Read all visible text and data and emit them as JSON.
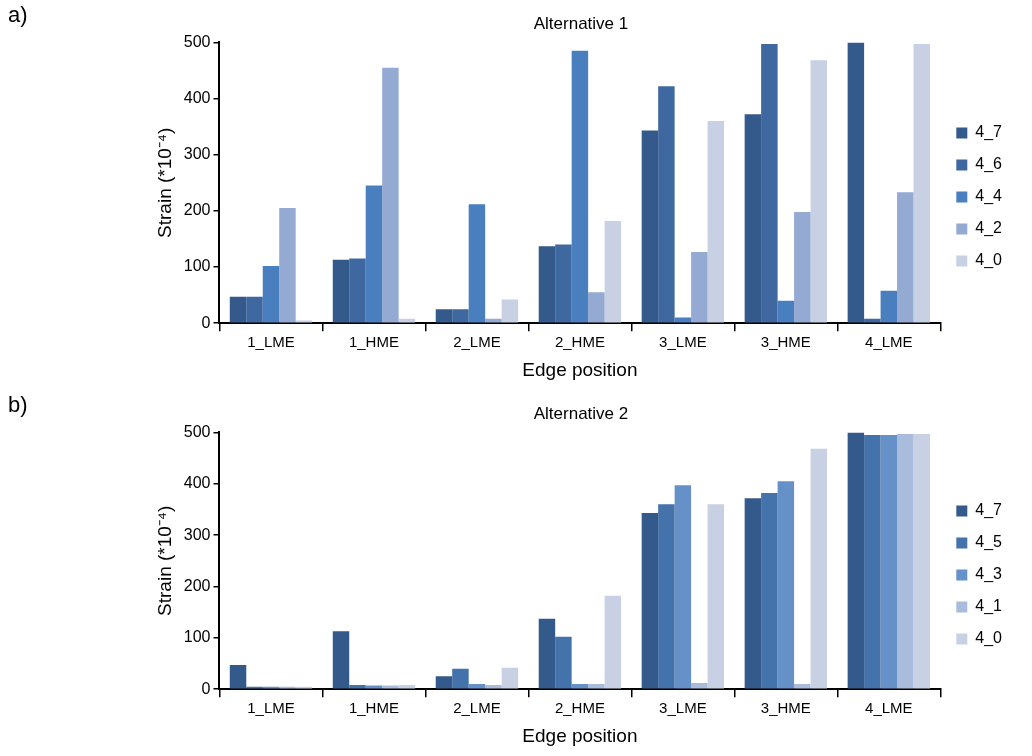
{
  "chart_data": [
    {
      "type": "bar",
      "title": "Alternative 1",
      "xlabel": "Edge position",
      "ylabel": "Strain (*10⁻⁴)",
      "annotations": [
        "a)"
      ],
      "categories": [
        "1_LME",
        "1_HME",
        "2_LME",
        "2_HME",
        "3_LME",
        "3_HME",
        "4_LME"
      ],
      "series": [
        {
          "name": "4_7",
          "color": "#335a8a",
          "values": [
            47,
            113,
            25,
            137,
            343,
            372,
            500
          ]
        },
        {
          "name": "4_6",
          "color": "#3f68a0",
          "values": [
            47,
            115,
            25,
            140,
            422,
            497,
            8
          ]
        },
        {
          "name": "4_4",
          "color": "#4a7fbf",
          "values": [
            102,
            245,
            212,
            485,
            10,
            40,
            58
          ]
        },
        {
          "name": "4_2",
          "color": "#94aad2",
          "values": [
            205,
            455,
            8,
            55,
            127,
            198,
            233
          ]
        },
        {
          "name": "4_0",
          "color": "#c8d0e4",
          "values": [
            5,
            8,
            42,
            182,
            360,
            468,
            497
          ]
        }
      ],
      "ylim": [
        0,
        500
      ],
      "yticks": [
        0,
        100,
        200,
        300,
        400,
        500
      ],
      "grid": false,
      "legend": "right"
    },
    {
      "type": "bar",
      "title": "Alternative 2",
      "xlabel": "Edge position",
      "ylabel": "Strain (*10⁻⁴)",
      "annotations": [
        "b)"
      ],
      "categories": [
        "1_LME",
        "1_HME",
        "2_LME",
        "2_HME",
        "3_LME",
        "3_HME",
        "4_LME"
      ],
      "series": [
        {
          "name": "4_7",
          "color": "#335a8a",
          "values": [
            47,
            113,
            25,
            137,
            343,
            372,
            500
          ]
        },
        {
          "name": "4_5",
          "color": "#4472aa",
          "values": [
            5,
            8,
            40,
            102,
            360,
            382,
            495
          ]
        },
        {
          "name": "4_3",
          "color": "#6690c8",
          "values": [
            5,
            7,
            10,
            10,
            397,
            405,
            495
          ]
        },
        {
          "name": "4_1",
          "color": "#a9bcdc",
          "values": [
            5,
            7,
            8,
            10,
            12,
            10,
            497
          ]
        },
        {
          "name": "4_0",
          "color": "#c8d0e4",
          "values": [
            5,
            8,
            42,
            182,
            360,
            468,
            497
          ]
        }
      ],
      "ylim": [
        0,
        500
      ],
      "yticks": [
        0,
        100,
        200,
        300,
        400,
        500
      ],
      "grid": false,
      "legend": "right"
    }
  ]
}
